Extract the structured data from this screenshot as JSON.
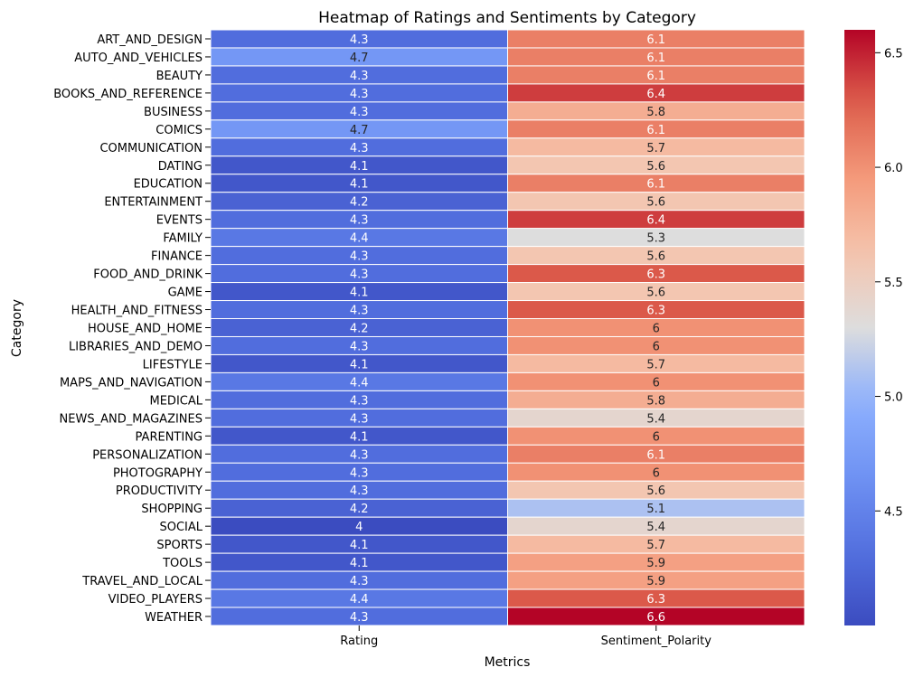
{
  "chart_data": {
    "type": "heatmap",
    "title": "Heatmap of Ratings and Sentiments by Category",
    "xlabel": "Metrics",
    "ylabel": "Category",
    "columns": [
      "Rating",
      "Sentiment_Polarity"
    ],
    "rows": [
      "ART_AND_DESIGN",
      "AUTO_AND_VEHICLES",
      "BEAUTY",
      "BOOKS_AND_REFERENCE",
      "BUSINESS",
      "COMICS",
      "COMMUNICATION",
      "DATING",
      "EDUCATION",
      "ENTERTAINMENT",
      "EVENTS",
      "FAMILY",
      "FINANCE",
      "FOOD_AND_DRINK",
      "GAME",
      "HEALTH_AND_FITNESS",
      "HOUSE_AND_HOME",
      "LIBRARIES_AND_DEMO",
      "LIFESTYLE",
      "MAPS_AND_NAVIGATION",
      "MEDICAL",
      "NEWS_AND_MAGAZINES",
      "PARENTING",
      "PERSONALIZATION",
      "PHOTOGRAPHY",
      "PRODUCTIVITY",
      "SHOPPING",
      "SOCIAL",
      "SPORTS",
      "TOOLS",
      "TRAVEL_AND_LOCAL",
      "VIDEO_PLAYERS",
      "WEATHER"
    ],
    "values": [
      [
        4.3,
        6.1
      ],
      [
        4.7,
        6.1
      ],
      [
        4.3,
        6.1
      ],
      [
        4.3,
        6.4
      ],
      [
        4.3,
        5.8
      ],
      [
        4.7,
        6.1
      ],
      [
        4.3,
        5.7
      ],
      [
        4.1,
        5.6
      ],
      [
        4.1,
        6.1
      ],
      [
        4.2,
        5.6
      ],
      [
        4.3,
        6.4
      ],
      [
        4.4,
        5.3
      ],
      [
        4.3,
        5.6
      ],
      [
        4.3,
        6.3
      ],
      [
        4.1,
        5.6
      ],
      [
        4.3,
        6.3
      ],
      [
        4.2,
        6
      ],
      [
        4.3,
        6
      ],
      [
        4.1,
        5.7
      ],
      [
        4.4,
        6
      ],
      [
        4.3,
        5.8
      ],
      [
        4.3,
        5.4
      ],
      [
        4.1,
        6
      ],
      [
        4.3,
        6.1
      ],
      [
        4.3,
        6
      ],
      [
        4.3,
        5.6
      ],
      [
        4.2,
        5.1
      ],
      [
        4,
        5.4
      ],
      [
        4.1,
        5.7
      ],
      [
        4.1,
        5.9
      ],
      [
        4.3,
        5.9
      ],
      [
        4.4,
        6.3
      ],
      [
        4.3,
        6.6
      ]
    ],
    "colormap": "coolwarm",
    "vmin": 4.0,
    "vmax": 6.6,
    "colorbar_ticks": [
      4.5,
      5.0,
      5.5,
      6.0,
      6.5
    ],
    "colorbar_tick_labels": [
      "4.5",
      "5.0",
      "5.5",
      "6.0",
      "6.5"
    ]
  }
}
